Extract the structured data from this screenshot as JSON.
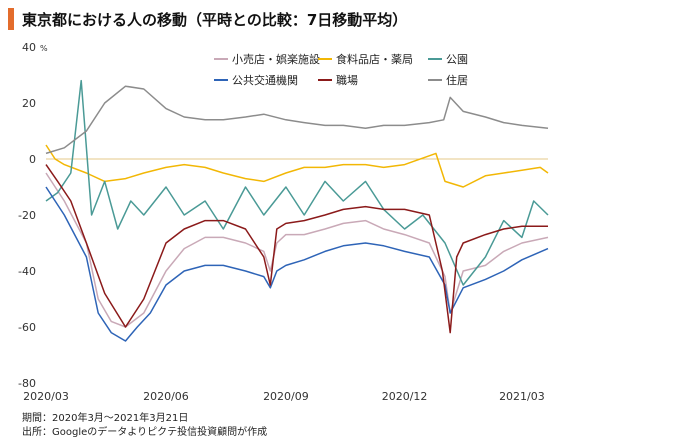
{
  "title": "東京都における人の移動（平時との比較：7日移動平均）",
  "footnote_period": "期間：2020年3月～2021年3月21日",
  "footnote_source": "出所：Googleのデータよりピクテ投信投資顧問が作成",
  "chart_data": {
    "type": "line",
    "y_unit": "%",
    "ylim": [
      -80,
      40
    ],
    "yticks": [
      -80,
      -60,
      -40,
      -20,
      0,
      20,
      40
    ],
    "xlim": [
      "2020-03-01",
      "2021-03-21"
    ],
    "xticks": [
      {
        "date": "2020-03-01",
        "label": "2020/03"
      },
      {
        "date": "2020-06-01",
        "label": "2020/06"
      },
      {
        "date": "2020-09-01",
        "label": "2020/09"
      },
      {
        "date": "2020-12-01",
        "label": "2020/12"
      },
      {
        "date": "2021-03-01",
        "label": "2021/03"
      }
    ],
    "grid": false,
    "zero_line": true,
    "legend_position": "top-right",
    "series": [
      {
        "name": "小売店・娯楽施設",
        "color": "#c9a9b7",
        "points": [
          [
            "2020-03-01",
            -5
          ],
          [
            "2020-03-15",
            -15
          ],
          [
            "2020-04-01",
            -30
          ],
          [
            "2020-04-10",
            -50
          ],
          [
            "2020-04-20",
            -58
          ],
          [
            "2020-05-01",
            -60
          ],
          [
            "2020-05-15",
            -55
          ],
          [
            "2020-06-01",
            -40
          ],
          [
            "2020-06-15",
            -32
          ],
          [
            "2020-07-01",
            -28
          ],
          [
            "2020-07-15",
            -28
          ],
          [
            "2020-08-01",
            -30
          ],
          [
            "2020-08-15",
            -33
          ],
          [
            "2020-08-20",
            -40
          ],
          [
            "2020-08-25",
            -30
          ],
          [
            "2020-09-01",
            -27
          ],
          [
            "2020-09-15",
            -27
          ],
          [
            "2020-10-01",
            -25
          ],
          [
            "2020-10-15",
            -23
          ],
          [
            "2020-11-01",
            -22
          ],
          [
            "2020-11-15",
            -25
          ],
          [
            "2020-12-01",
            -27
          ],
          [
            "2020-12-20",
            -30
          ],
          [
            "2021-01-01",
            -42
          ],
          [
            "2021-01-05",
            -55
          ],
          [
            "2021-01-15",
            -40
          ],
          [
            "2021-02-01",
            -38
          ],
          [
            "2021-02-15",
            -33
          ],
          [
            "2021-03-01",
            -30
          ],
          [
            "2021-03-21",
            -28
          ]
        ]
      },
      {
        "name": "食料品店・薬局",
        "color": "#f2b705",
        "points": [
          [
            "2020-03-01",
            5
          ],
          [
            "2020-03-08",
            0
          ],
          [
            "2020-03-15",
            -2
          ],
          [
            "2020-04-01",
            -5
          ],
          [
            "2020-04-15",
            -8
          ],
          [
            "2020-05-01",
            -7
          ],
          [
            "2020-05-15",
            -5
          ],
          [
            "2020-06-01",
            -3
          ],
          [
            "2020-06-15",
            -2
          ],
          [
            "2020-07-01",
            -3
          ],
          [
            "2020-07-15",
            -5
          ],
          [
            "2020-08-01",
            -7
          ],
          [
            "2020-08-15",
            -8
          ],
          [
            "2020-09-01",
            -5
          ],
          [
            "2020-09-15",
            -3
          ],
          [
            "2020-10-01",
            -3
          ],
          [
            "2020-10-15",
            -2
          ],
          [
            "2020-11-01",
            -2
          ],
          [
            "2020-11-15",
            -3
          ],
          [
            "2020-12-01",
            -2
          ],
          [
            "2020-12-25",
            2
          ],
          [
            "2021-01-01",
            -8
          ],
          [
            "2021-01-15",
            -10
          ],
          [
            "2021-02-01",
            -6
          ],
          [
            "2021-02-15",
            -5
          ],
          [
            "2021-03-01",
            -4
          ],
          [
            "2021-03-15",
            -3
          ],
          [
            "2021-03-21",
            -5
          ]
        ]
      },
      {
        "name": "公園",
        "color": "#4a9a96",
        "points": [
          [
            "2020-03-01",
            -15
          ],
          [
            "2020-03-10",
            -12
          ],
          [
            "2020-03-20",
            -5
          ],
          [
            "2020-03-28",
            28
          ],
          [
            "2020-04-05",
            -20
          ],
          [
            "2020-04-15",
            -8
          ],
          [
            "2020-04-25",
            -25
          ],
          [
            "2020-05-05",
            -15
          ],
          [
            "2020-05-15",
            -20
          ],
          [
            "2020-06-01",
            -10
          ],
          [
            "2020-06-15",
            -20
          ],
          [
            "2020-07-01",
            -15
          ],
          [
            "2020-07-15",
            -25
          ],
          [
            "2020-08-01",
            -10
          ],
          [
            "2020-08-15",
            -20
          ],
          [
            "2020-09-01",
            -10
          ],
          [
            "2020-09-15",
            -20
          ],
          [
            "2020-10-01",
            -8
          ],
          [
            "2020-10-15",
            -15
          ],
          [
            "2020-11-01",
            -8
          ],
          [
            "2020-11-15",
            -18
          ],
          [
            "2020-12-01",
            -25
          ],
          [
            "2020-12-15",
            -20
          ],
          [
            "2021-01-01",
            -30
          ],
          [
            "2021-01-15",
            -45
          ],
          [
            "2021-02-01",
            -35
          ],
          [
            "2021-02-15",
            -22
          ],
          [
            "2021-03-01",
            -28
          ],
          [
            "2021-03-10",
            -15
          ],
          [
            "2021-03-21",
            -20
          ]
        ]
      },
      {
        "name": "公共交通機関",
        "color": "#2e64b7",
        "points": [
          [
            "2020-03-01",
            -10
          ],
          [
            "2020-03-15",
            -20
          ],
          [
            "2020-04-01",
            -35
          ],
          [
            "2020-04-10",
            -55
          ],
          [
            "2020-04-20",
            -62
          ],
          [
            "2020-05-01",
            -65
          ],
          [
            "2020-05-10",
            -60
          ],
          [
            "2020-05-20",
            -55
          ],
          [
            "2020-06-01",
            -45
          ],
          [
            "2020-06-15",
            -40
          ],
          [
            "2020-07-01",
            -38
          ],
          [
            "2020-07-15",
            -38
          ],
          [
            "2020-08-01",
            -40
          ],
          [
            "2020-08-15",
            -42
          ],
          [
            "2020-08-20",
            -46
          ],
          [
            "2020-08-25",
            -40
          ],
          [
            "2020-09-01",
            -38
          ],
          [
            "2020-09-15",
            -36
          ],
          [
            "2020-10-01",
            -33
          ],
          [
            "2020-10-15",
            -31
          ],
          [
            "2020-11-01",
            -30
          ],
          [
            "2020-11-15",
            -31
          ],
          [
            "2020-12-01",
            -33
          ],
          [
            "2020-12-20",
            -35
          ],
          [
            "2021-01-01",
            -45
          ],
          [
            "2021-01-05",
            -55
          ],
          [
            "2021-01-15",
            -46
          ],
          [
            "2021-02-01",
            -43
          ],
          [
            "2021-02-15",
            -40
          ],
          [
            "2021-03-01",
            -36
          ],
          [
            "2021-03-21",
            -32
          ]
        ]
      },
      {
        "name": "職場",
        "color": "#8b1a1a",
        "points": [
          [
            "2020-03-01",
            -2
          ],
          [
            "2020-03-10",
            -8
          ],
          [
            "2020-03-20",
            -15
          ],
          [
            "2020-04-01",
            -30
          ],
          [
            "2020-04-15",
            -48
          ],
          [
            "2020-05-01",
            -60
          ],
          [
            "2020-05-15",
            -50
          ],
          [
            "2020-06-01",
            -30
          ],
          [
            "2020-06-15",
            -25
          ],
          [
            "2020-07-01",
            -22
          ],
          [
            "2020-07-15",
            -22
          ],
          [
            "2020-08-01",
            -25
          ],
          [
            "2020-08-15",
            -35
          ],
          [
            "2020-08-20",
            -45
          ],
          [
            "2020-08-25",
            -25
          ],
          [
            "2020-09-01",
            -23
          ],
          [
            "2020-09-15",
            -22
          ],
          [
            "2020-10-01",
            -20
          ],
          [
            "2020-10-15",
            -18
          ],
          [
            "2020-11-01",
            -17
          ],
          [
            "2020-11-15",
            -18
          ],
          [
            "2020-12-01",
            -18
          ],
          [
            "2020-12-20",
            -20
          ],
          [
            "2020-12-30",
            -40
          ],
          [
            "2021-01-05",
            -62
          ],
          [
            "2021-01-10",
            -35
          ],
          [
            "2021-01-15",
            -30
          ],
          [
            "2021-02-01",
            -27
          ],
          [
            "2021-02-15",
            -25
          ],
          [
            "2021-03-01",
            -24
          ],
          [
            "2021-03-21",
            -24
          ]
        ]
      },
      {
        "name": "住居",
        "color": "#8c8c8c",
        "points": [
          [
            "2020-03-01",
            2
          ],
          [
            "2020-03-15",
            4
          ],
          [
            "2020-04-01",
            10
          ],
          [
            "2020-04-15",
            20
          ],
          [
            "2020-05-01",
            26
          ],
          [
            "2020-05-15",
            25
          ],
          [
            "2020-06-01",
            18
          ],
          [
            "2020-06-15",
            15
          ],
          [
            "2020-07-01",
            14
          ],
          [
            "2020-07-15",
            14
          ],
          [
            "2020-08-01",
            15
          ],
          [
            "2020-08-15",
            16
          ],
          [
            "2020-09-01",
            14
          ],
          [
            "2020-09-15",
            13
          ],
          [
            "2020-10-01",
            12
          ],
          [
            "2020-10-15",
            12
          ],
          [
            "2020-11-01",
            11
          ],
          [
            "2020-11-15",
            12
          ],
          [
            "2020-12-01",
            12
          ],
          [
            "2020-12-20",
            13
          ],
          [
            "2020-12-31",
            14
          ],
          [
            "2021-01-05",
            22
          ],
          [
            "2021-01-15",
            17
          ],
          [
            "2021-02-01",
            15
          ],
          [
            "2021-02-15",
            13
          ],
          [
            "2021-03-01",
            12
          ],
          [
            "2021-03-21",
            11
          ]
        ]
      }
    ]
  }
}
